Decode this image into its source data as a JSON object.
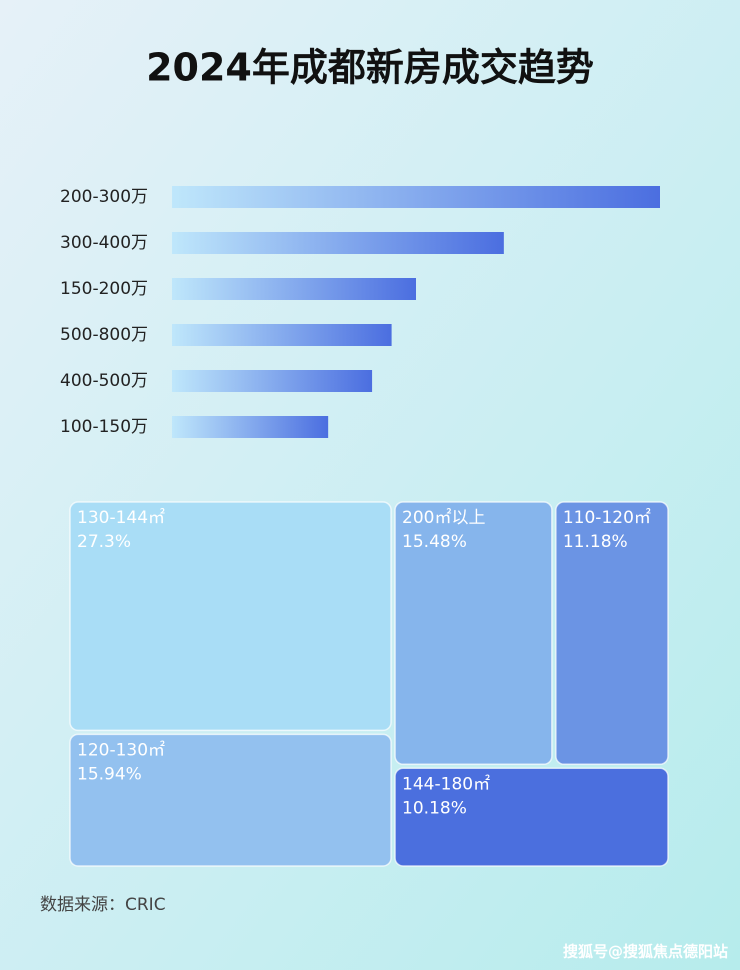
{
  "title": "2024年成都新房成交趋势",
  "source": "数据来源：CRIC",
  "watermark": "搜狐号@搜狐焦点德阳站",
  "chart_data": [
    {
      "type": "bar",
      "orientation": "horizontal",
      "categories": [
        "200-300万",
        "300-400万",
        "150-200万",
        "500-800万",
        "400-500万",
        "100-150万"
      ],
      "values": [
        100,
        68,
        50,
        45,
        41,
        32
      ],
      "xlim": [
        0,
        100
      ],
      "color": "#4b6ee0"
    },
    {
      "type": "treemap",
      "categories": [
        "130-144㎡",
        "200㎡以上",
        "110-120㎡",
        "120-130㎡",
        "144-180㎡"
      ],
      "values": [
        27.3,
        15.48,
        11.18,
        15.94,
        10.18
      ],
      "value_labels": [
        "27.3%",
        "15.48%",
        "11.18%",
        "15.94%",
        "10.18%"
      ],
      "colors": [
        "#a9ddf6",
        "#86b5ec",
        "#6b94e4",
        "#93c1ef",
        "#4b6fde"
      ]
    }
  ]
}
